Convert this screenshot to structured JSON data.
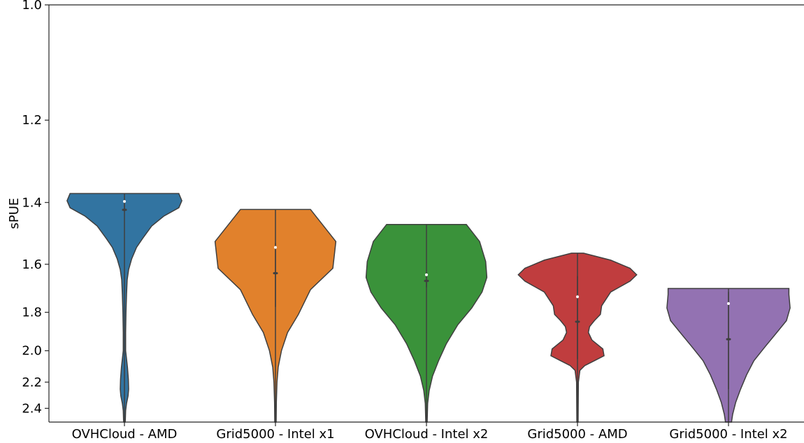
{
  "chart_data": {
    "type": "violin",
    "title": "",
    "xlabel": "",
    "ylabel": "sPUE",
    "ylim": [
      1.0,
      2.52
    ],
    "y_scale": "reciprocal",
    "y_ticks": [
      1.0,
      1.2,
      1.4,
      1.6,
      1.8,
      2.0,
      2.2,
      2.4
    ],
    "y_tick_labels": [
      "1.0",
      "1.2",
      "1.4",
      "1.6",
      "1.8",
      "2.0",
      "2.2",
      "2.4"
    ],
    "grid": false,
    "legend": "none",
    "categories": [
      "OVHCloud - AMD",
      "Grid5000 - Intel x1",
      "OVHCloud - Intel x2",
      "Grid5000 - AMD",
      "Grid5000 - Intel x2"
    ],
    "series": [
      {
        "color": "#3274a1",
        "min": 1.375,
        "q1": 1.39,
        "median": 1.397,
        "q3": 1.418,
        "whisker_top": 1.425,
        "max": 2.52,
        "density_profile": [
          [
            1.375,
            0.9
          ],
          [
            1.395,
            0.95
          ],
          [
            1.415,
            0.9
          ],
          [
            1.44,
            0.65
          ],
          [
            1.47,
            0.45
          ],
          [
            1.51,
            0.3
          ],
          [
            1.54,
            0.2
          ],
          [
            1.58,
            0.12
          ],
          [
            1.62,
            0.07
          ],
          [
            1.66,
            0.045
          ],
          [
            1.72,
            0.035
          ],
          [
            1.8,
            0.025
          ],
          [
            1.9,
            0.02
          ],
          [
            2.0,
            0.02
          ],
          [
            2.1,
            0.05
          ],
          [
            2.18,
            0.065
          ],
          [
            2.25,
            0.07
          ],
          [
            2.3,
            0.06
          ],
          [
            2.36,
            0.035
          ],
          [
            2.42,
            0.02
          ],
          [
            2.5,
            0.015
          ],
          [
            2.52,
            0.012
          ]
        ]
      },
      {
        "color": "#e1812c",
        "min": 1.42,
        "q1": 1.525,
        "median": 1.54,
        "q3": 1.63,
        "whisker_top": 1.775,
        "max": 2.52,
        "density_profile": [
          [
            1.42,
            0.58
          ],
          [
            1.52,
            1.0
          ],
          [
            1.615,
            0.95
          ],
          [
            1.7,
            0.58
          ],
          [
            1.81,
            0.38
          ],
          [
            1.9,
            0.2
          ],
          [
            2.0,
            0.1
          ],
          [
            2.1,
            0.045
          ],
          [
            2.2,
            0.025
          ],
          [
            2.35,
            0.015
          ],
          [
            2.52,
            0.012
          ]
        ]
      },
      {
        "color": "#3a923a",
        "min": 1.465,
        "q1": 1.635,
        "median": 1.64,
        "q3": 1.66,
        "whisker_top": 1.69,
        "max": 2.52,
        "density_profile": [
          [
            1.465,
            0.66
          ],
          [
            1.52,
            0.88
          ],
          [
            1.59,
            0.98
          ],
          [
            1.65,
            1.0
          ],
          [
            1.71,
            0.92
          ],
          [
            1.78,
            0.75
          ],
          [
            1.86,
            0.52
          ],
          [
            1.96,
            0.33
          ],
          [
            2.06,
            0.2
          ],
          [
            2.16,
            0.1
          ],
          [
            2.26,
            0.045
          ],
          [
            2.36,
            0.02
          ],
          [
            2.52,
            0.012
          ]
        ]
      },
      {
        "color": "#c03d3e",
        "min": 1.56,
        "q1": 1.645,
        "median": 1.73,
        "q3": 1.84,
        "whisker_top": 2.05,
        "max": 2.52,
        "density_profile": [
          [
            1.56,
            0.1
          ],
          [
            1.585,
            0.55
          ],
          [
            1.615,
            0.87
          ],
          [
            1.64,
            0.98
          ],
          [
            1.665,
            0.87
          ],
          [
            1.71,
            0.55
          ],
          [
            1.77,
            0.4
          ],
          [
            1.81,
            0.38
          ],
          [
            1.84,
            0.28
          ],
          [
            1.87,
            0.2
          ],
          [
            1.9,
            0.18
          ],
          [
            1.94,
            0.24
          ],
          [
            1.99,
            0.42
          ],
          [
            2.03,
            0.44
          ],
          [
            2.06,
            0.28
          ],
          [
            2.09,
            0.12
          ],
          [
            2.12,
            0.04
          ],
          [
            2.2,
            0.015
          ],
          [
            2.52,
            0.01
          ]
        ]
      },
      {
        "color": "#9372b2",
        "min": 1.695,
        "q1": 1.71,
        "median": 1.76,
        "q3": 1.93,
        "whisker_top": 2.25,
        "max": 2.52,
        "density_profile": [
          [
            1.695,
            1.0
          ],
          [
            1.72,
            1.0
          ],
          [
            1.78,
            1.02
          ],
          [
            1.84,
            0.96
          ],
          [
            1.9,
            0.8
          ],
          [
            1.98,
            0.6
          ],
          [
            2.06,
            0.42
          ],
          [
            2.15,
            0.3
          ],
          [
            2.25,
            0.2
          ],
          [
            2.35,
            0.12
          ],
          [
            2.45,
            0.07
          ],
          [
            2.52,
            0.05
          ]
        ]
      }
    ]
  }
}
